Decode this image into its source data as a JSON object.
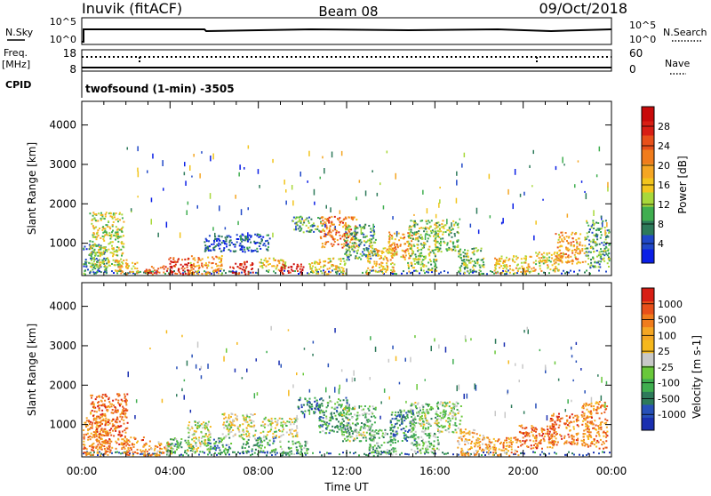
{
  "header": {
    "station": "Inuvik (fitACF)",
    "beam": "Beam 08",
    "date": "09/Oct/2018"
  },
  "strip_panels": {
    "nsky": {
      "left_label": "N.Sky",
      "right_label": "N.Search",
      "left_ticks": [
        "10^5",
        "10^0"
      ],
      "right_ticks": [
        "10^5",
        "10^0"
      ]
    },
    "freq": {
      "left_label_1": "Freq.",
      "left_label_2": "[MHz]",
      "right_label": "Nave",
      "left_ticks": [
        "18",
        "8"
      ],
      "right_ticks": [
        "60",
        "0"
      ]
    },
    "cpid": {
      "label": "CPID",
      "text": "twofsound (1-min) -3505"
    }
  },
  "chart_data": [
    {
      "type": "heatmap",
      "name": "power-panel",
      "ylabel": "Slant Range [km]",
      "xlabel": "",
      "y_ticks": [
        "1000",
        "2000",
        "3000",
        "4000"
      ],
      "ylim": [
        180,
        4600
      ],
      "xlim": [
        "00:00",
        "24:00"
      ],
      "colorbar": {
        "label": "Power [dB]",
        "ticks": [
          "4",
          "8",
          "12",
          "16",
          "20",
          "24",
          "28"
        ],
        "range": [
          0,
          32
        ],
        "colors": [
          "#0a1ee6",
          "#2048c8",
          "#2d7a5a",
          "#3fae4f",
          "#a8d83a",
          "#f2c41c",
          "#f5a623",
          "#f07c1c",
          "#e8501a",
          "#d81e14",
          "#c80a0a"
        ]
      },
      "clusters": [
        {
          "t": 0.45,
          "r0": 230,
          "r1": 1000,
          "level": 0.25
        },
        {
          "t": 1.1,
          "r0": 400,
          "r1": 1800,
          "level": 0.45
        },
        {
          "t": 2.0,
          "r0": 230,
          "r1": 600,
          "level": 0.55
        },
        {
          "t": 3.5,
          "r0": 230,
          "r1": 450,
          "level": 0.75
        },
        {
          "t": 4.5,
          "r0": 230,
          "r1": 650,
          "level": 0.85
        },
        {
          "t": 5.6,
          "r0": 230,
          "r1": 700,
          "level": 0.6
        },
        {
          "t": 6.4,
          "r0": 800,
          "r1": 1250,
          "level": 0.1
        },
        {
          "t": 7.2,
          "r0": 230,
          "r1": 550,
          "level": 0.9
        },
        {
          "t": 7.8,
          "r0": 800,
          "r1": 1250,
          "level": 0.15
        },
        {
          "t": 8.6,
          "r0": 300,
          "r1": 650,
          "level": 0.5
        },
        {
          "t": 9.5,
          "r0": 230,
          "r1": 500,
          "level": 0.9
        },
        {
          "t": 10.2,
          "r0": 1300,
          "r1": 1700,
          "level": 0.3
        },
        {
          "t": 11.1,
          "r0": 230,
          "r1": 650,
          "level": 0.5
        },
        {
          "t": 11.6,
          "r0": 900,
          "r1": 1700,
          "level": 0.7
        },
        {
          "t": 12.6,
          "r0": 600,
          "r1": 1500,
          "level": 0.3
        },
        {
          "t": 13.5,
          "r0": 230,
          "r1": 900,
          "level": 0.55
        },
        {
          "t": 14.4,
          "r0": 600,
          "r1": 1300,
          "level": 0.6
        },
        {
          "t": 15.4,
          "r0": 300,
          "r1": 1600,
          "level": 0.4
        },
        {
          "t": 16.5,
          "r0": 800,
          "r1": 1600,
          "level": 0.4
        },
        {
          "t": 17.6,
          "r0": 230,
          "r1": 900,
          "level": 0.35
        },
        {
          "t": 19.5,
          "r0": 230,
          "r1": 700,
          "level": 0.55
        },
        {
          "t": 21.0,
          "r0": 300,
          "r1": 800,
          "level": 0.5
        },
        {
          "t": 22.1,
          "r0": 500,
          "r1": 1300,
          "level": 0.6
        },
        {
          "t": 23.4,
          "r0": 400,
          "r1": 1600,
          "level": 0.3
        }
      ]
    },
    {
      "type": "heatmap",
      "name": "velocity-panel",
      "ylabel": "Slant Range [km]",
      "xlabel": "Time UT",
      "y_ticks": [
        "1000",
        "2000",
        "3000",
        "4000"
      ],
      "ylim": [
        180,
        4600
      ],
      "x_ticks": [
        "00:00",
        "04:00",
        "08:00",
        "12:00",
        "16:00",
        "20:00",
        "00:00"
      ],
      "xlim": [
        "00:00",
        "24:00"
      ],
      "colorbar": {
        "label": "Velocity [m s-1]",
        "ticks": [
          "1000",
          "500",
          "100",
          "25",
          "-25",
          "-100",
          "-500",
          "-1000"
        ],
        "colors": [
          "#1a2fb0",
          "#2750b8",
          "#2d7a5a",
          "#3fae4f",
          "#69c83a",
          "#c8c8c8",
          "#f5b81c",
          "#f5a623",
          "#f07c1c",
          "#e8501a",
          "#d81e14"
        ]
      },
      "clusters": [
        {
          "t": 0.5,
          "r0": 230,
          "r1": 1200,
          "level": 0.75
        },
        {
          "t": 1.2,
          "r0": 400,
          "r1": 1800,
          "level": 0.8
        },
        {
          "t": 2.3,
          "r0": 230,
          "r1": 700,
          "level": 0.75
        },
        {
          "t": 3.4,
          "r0": 230,
          "r1": 600,
          "level": 0.7
        },
        {
          "t": 4.4,
          "r0": 300,
          "r1": 700,
          "level": 0.35
        },
        {
          "t": 5.3,
          "r0": 300,
          "r1": 1100,
          "level": 0.5
        },
        {
          "t": 6.2,
          "r0": 300,
          "r1": 700,
          "level": 0.3
        },
        {
          "t": 7.1,
          "r0": 700,
          "r1": 1300,
          "level": 0.5
        },
        {
          "t": 8.0,
          "r0": 300,
          "r1": 700,
          "level": 0.3
        },
        {
          "t": 8.9,
          "r0": 700,
          "r1": 1200,
          "level": 0.5
        },
        {
          "t": 9.6,
          "r0": 230,
          "r1": 600,
          "level": 0.35
        },
        {
          "t": 10.3,
          "r0": 1300,
          "r1": 1700,
          "level": 0.2
        },
        {
          "t": 11.4,
          "r0": 800,
          "r1": 1700,
          "level": 0.3
        },
        {
          "t": 12.5,
          "r0": 600,
          "r1": 1500,
          "level": 0.4
        },
        {
          "t": 13.6,
          "r0": 230,
          "r1": 900,
          "level": 0.35
        },
        {
          "t": 14.5,
          "r0": 600,
          "r1": 1400,
          "level": 0.25
        },
        {
          "t": 15.5,
          "r0": 300,
          "r1": 1600,
          "level": 0.4
        },
        {
          "t": 16.6,
          "r0": 800,
          "r1": 1600,
          "level": 0.45
        },
        {
          "t": 17.6,
          "r0": 230,
          "r1": 900,
          "level": 0.65
        },
        {
          "t": 19.0,
          "r0": 230,
          "r1": 700,
          "level": 0.7
        },
        {
          "t": 20.6,
          "r0": 400,
          "r1": 1000,
          "level": 0.8
        },
        {
          "t": 21.8,
          "r0": 500,
          "r1": 1300,
          "level": 0.8
        },
        {
          "t": 23.2,
          "r0": 400,
          "r1": 1600,
          "level": 0.75
        }
      ]
    }
  ]
}
